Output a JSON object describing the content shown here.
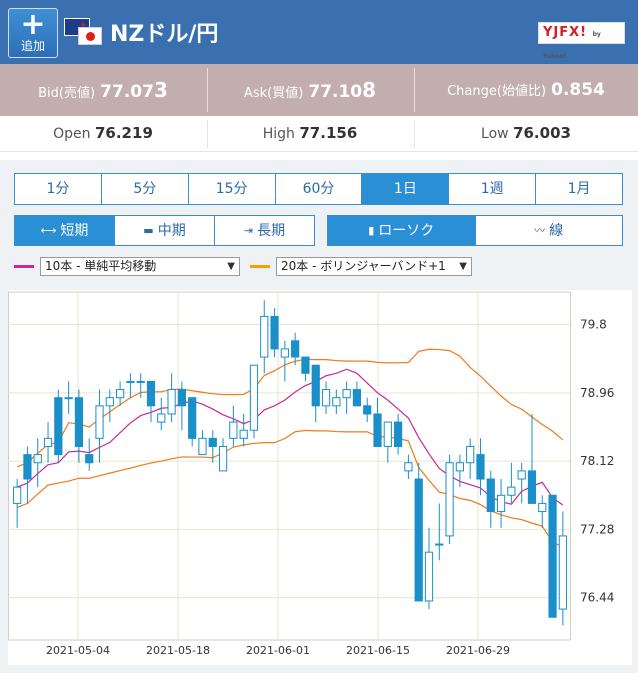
{
  "header": {
    "add_label": "追加",
    "pair_title": "NZドル/円",
    "logo_text": "YJFX!",
    "logo_small": "by Yahoo!"
  },
  "prices": {
    "bid_label": "Bid(売値)",
    "bid_main": "77.07",
    "bid_last": "3",
    "ask_label": "Ask(買値)",
    "ask_main": "77.10",
    "ask_last": "8",
    "change_label": "Change(始値比)",
    "change_value": "0.854",
    "open_label": "Open",
    "open_main": "76.21",
    "open_last": "9",
    "high_label": "High",
    "high_main": "77.15",
    "high_last": "6",
    "low_label": "Low",
    "low_main": "76.00",
    "low_last": "3"
  },
  "periods": [
    "1分",
    "5分",
    "15分",
    "60分",
    "1日",
    "1週",
    "1月"
  ],
  "active_period": "1日",
  "ranges": [
    "短期",
    "中期",
    "長期"
  ],
  "active_range": "短期",
  "chart_types": [
    "ローソク",
    "線"
  ],
  "active_chart_type": "ローソク",
  "indicators": [
    {
      "label": "10本 - 単純平均移動",
      "color": "#c8289c"
    },
    {
      "label": "20本 - ボリンジャーバンド+1",
      "color": "#f2a300"
    }
  ],
  "colors": {
    "up": "#ffffff",
    "down": "#1a8fc9",
    "ma": "#c8289c",
    "band": "#f07a1a",
    "grid": "#e6e6d0"
  },
  "chart_data": {
    "type": "candlestick",
    "y_ticks": [
      "79.8",
      "78.96",
      "78.12",
      "77.28",
      "76.44"
    ],
    "x_ticks": [
      "2021-05-04",
      "2021-05-18",
      "2021-06-01",
      "2021-06-15",
      "2021-06-29"
    ],
    "ylim": [
      75.92,
      80.2
    ]
  }
}
